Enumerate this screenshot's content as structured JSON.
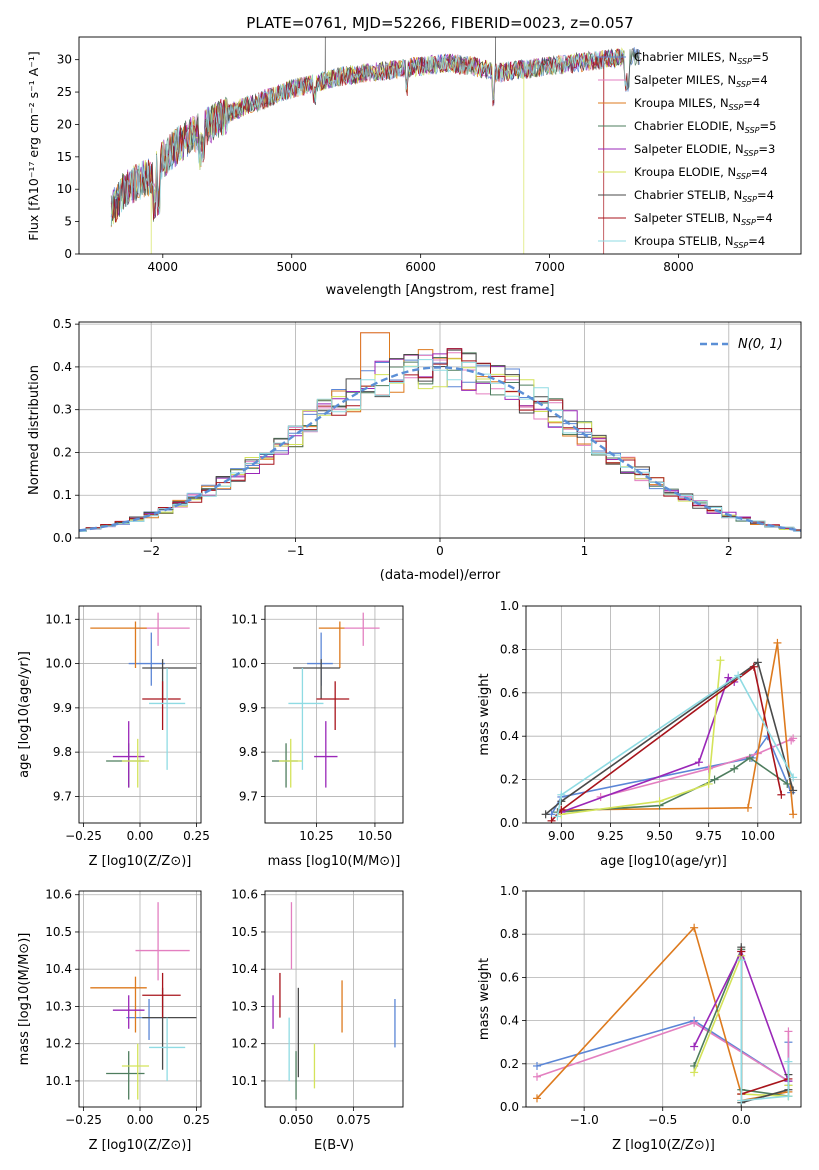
{
  "figure": {
    "title": "PLATE=0761, MJD=52266, FIBERID=0023, z=0.057"
  },
  "colors": {
    "chabrier_miles": "#5b86d6",
    "salpeter_miles": "#e37fc0",
    "kroupa_miles": "#dd7a1e",
    "chabrier_elodie": "#4e7d5e",
    "salpeter_elodie": "#9a27b8",
    "kroupa_elodie": "#d4e35a",
    "chabrier_stelib": "#4a4a4a",
    "salpeter_stelib": "#a8141c",
    "kroupa_stelib": "#8fdbe3",
    "normal": "#5b8fd6",
    "grid": "#b0b0b0"
  },
  "chart_data": [
    {
      "id": "spectrum",
      "type": "line",
      "xlabel": "wavelength [Angstrom, rest frame]",
      "ylabel": "Flux [f_λ10^-17 erg cm^-2 s^-1 A^-1]",
      "xlim": [
        3350,
        8950
      ],
      "ylim": [
        0,
        33.5
      ],
      "xticks": [
        4000,
        5000,
        6000,
        7000,
        8000
      ],
      "yticks": [
        0,
        5,
        10,
        15,
        20,
        25,
        30
      ],
      "grid": false,
      "legend_position": "right",
      "continuum": {
        "x": [
          3600,
          3700,
          3800,
          3900,
          4000,
          4100,
          4200,
          4300,
          4400,
          4600,
          4800,
          5000,
          5200,
          5400,
          5600,
          5800,
          6000,
          6200,
          6400,
          6600,
          6800,
          7000,
          7200,
          7400,
          7600
        ],
        "y": [
          6.5,
          10,
          11,
          12,
          14.5,
          16.5,
          18,
          19,
          20.5,
          22.5,
          24,
          25.5,
          26.5,
          27.5,
          28,
          28.5,
          29,
          29.5,
          29,
          28,
          28.5,
          29,
          29.5,
          30,
          30.5
        ]
      },
      "series": [
        {
          "name": "Chabrier MILES, N_SSP=5",
          "color_key": "chabrier_miles"
        },
        {
          "name": "Salpeter MILES, N_SSP=4",
          "color_key": "salpeter_miles"
        },
        {
          "name": "Kroupa MILES, N_SSP=4",
          "color_key": "kroupa_miles"
        },
        {
          "name": "Chabrier ELODIE, N_SSP=5",
          "color_key": "chabrier_elodie"
        },
        {
          "name": "Salpeter ELODIE, N_SSP=3",
          "color_key": "salpeter_elodie"
        },
        {
          "name": "Kroupa ELODIE, N_SSP=4",
          "color_key": "kroupa_elodie"
        },
        {
          "name": "Chabrier STELIB, N_SSP=4",
          "color_key": "chabrier_stelib"
        },
        {
          "name": "Salpeter STELIB, N_SSP=4",
          "color_key": "salpeter_stelib"
        },
        {
          "name": "Kroupa STELIB, N_SSP=4",
          "color_key": "kroupa_stelib"
        }
      ]
    },
    {
      "id": "residuals",
      "type": "bar",
      "xlabel": "(data-model)/error",
      "ylabel": "Normed distribution",
      "xlim": [
        -2.5,
        2.5
      ],
      "ylim": [
        0,
        0.505
      ],
      "xticks": [
        -2,
        -1,
        0,
        1,
        2
      ],
      "yticks": [
        0.0,
        0.1,
        0.2,
        0.3,
        0.4,
        0.5
      ],
      "grid": true,
      "legend_position": "top-right",
      "legend_label": "N(0, 1)",
      "bin_width": 0.1,
      "series_keys": [
        "chabrier_miles",
        "salpeter_miles",
        "kroupa_miles",
        "chabrier_elodie",
        "salpeter_elodie",
        "kroupa_elodie",
        "chabrier_stelib",
        "salpeter_stelib",
        "kroupa_stelib"
      ]
    },
    {
      "id": "age_vs_Z",
      "type": "scatter",
      "xlabel": "Z [log10(Z/Z⊙)]",
      "ylabel": "age [log10(age/yr)]",
      "xlim": [
        -0.27,
        0.27
      ],
      "ylim": [
        9.64,
        10.13
      ],
      "xticks": [
        -0.25,
        0.0,
        0.25
      ],
      "yticks": [
        9.7,
        9.8,
        9.9,
        10.0,
        10.1
      ],
      "grid": true,
      "points": [
        {
          "key": "chabrier_miles",
          "x": 0.05,
          "y": 10.0,
          "xerr": [
            0.1,
            0.06
          ],
          "yerr": [
            0.05,
            0.07
          ]
        },
        {
          "key": "salpeter_miles",
          "x": 0.08,
          "y": 10.08,
          "xerr": [
            0.1,
            0.14
          ],
          "yerr": [
            0.04,
            0.035
          ]
        },
        {
          "key": "kroupa_miles",
          "x": -0.02,
          "y": 10.08,
          "xerr": [
            0.2,
            0.05
          ],
          "yerr": [
            0.09,
            0.015
          ]
        },
        {
          "key": "chabrier_elodie",
          "x": -0.05,
          "y": 9.78,
          "xerr": [
            0.1,
            0.07
          ],
          "yerr": [
            0.06,
            0.04
          ]
        },
        {
          "key": "salpeter_elodie",
          "x": -0.05,
          "y": 9.79,
          "xerr": [
            0.07,
            0.07
          ],
          "yerr": [
            0.07,
            0.08
          ]
        },
        {
          "key": "kroupa_elodie",
          "x": -0.01,
          "y": 9.78,
          "xerr": [
            0.07,
            0.05
          ],
          "yerr": [
            0.06,
            0.05
          ]
        },
        {
          "key": "chabrier_stelib",
          "x": 0.1,
          "y": 9.99,
          "xerr": [
            0.09,
            0.15
          ],
          "yerr": [
            0.07,
            0.02
          ]
        },
        {
          "key": "salpeter_stelib",
          "x": 0.1,
          "y": 9.92,
          "xerr": [
            0.09,
            0.08
          ],
          "yerr": [
            0.07,
            0.04
          ]
        },
        {
          "key": "kroupa_stelib",
          "x": 0.12,
          "y": 9.91,
          "xerr": [
            0.08,
            0.08
          ],
          "yerr": [
            0.15,
            0.08
          ]
        }
      ]
    },
    {
      "id": "age_vs_mass",
      "type": "scatter",
      "xlabel": "mass [log10(M/M⊙)]",
      "ylabel": "",
      "xlim": [
        10.03,
        10.62
      ],
      "ylim": [
        9.64,
        10.13
      ],
      "xticks": [
        10.25,
        10.5
      ],
      "yticks": [
        9.7,
        9.8,
        9.9,
        10.0,
        10.1
      ],
      "grid": true,
      "points": [
        {
          "key": "chabrier_miles",
          "x": 10.27,
          "y": 10.0,
          "xerr": [
            0.06,
            0.05
          ],
          "yerr": [
            0.05,
            0.07
          ]
        },
        {
          "key": "salpeter_miles",
          "x": 10.45,
          "y": 10.08,
          "xerr": [
            0.08,
            0.07
          ],
          "yerr": [
            0.04,
            0.035
          ]
        },
        {
          "key": "kroupa_miles",
          "x": 10.35,
          "y": 10.08,
          "xerr": [
            0.09,
            0.02
          ],
          "yerr": [
            0.09,
            0.015
          ]
        },
        {
          "key": "chabrier_elodie",
          "x": 10.12,
          "y": 9.78,
          "xerr": [
            0.06,
            0.05
          ],
          "yerr": [
            0.06,
            0.04
          ]
        },
        {
          "key": "salpeter_elodie",
          "x": 10.29,
          "y": 9.79,
          "xerr": [
            0.05,
            0.05
          ],
          "yerr": [
            0.07,
            0.08
          ]
        },
        {
          "key": "kroupa_elodie",
          "x": 10.14,
          "y": 9.78,
          "xerr": [
            0.05,
            0.05
          ],
          "yerr": [
            0.06,
            0.05
          ]
        },
        {
          "key": "chabrier_stelib",
          "x": 10.27,
          "y": 9.99,
          "xerr": [
            0.12,
            0.08
          ],
          "yerr": [
            0.07,
            0.02
          ]
        },
        {
          "key": "salpeter_stelib",
          "x": 10.33,
          "y": 9.92,
          "xerr": [
            0.08,
            0.06
          ],
          "yerr": [
            0.07,
            0.04
          ]
        },
        {
          "key": "kroupa_stelib",
          "x": 10.19,
          "y": 9.91,
          "xerr": [
            0.06,
            0.09
          ],
          "yerr": [
            0.15,
            0.08
          ]
        }
      ]
    },
    {
      "id": "weight_vs_age",
      "type": "line",
      "xlabel": "age [log10(age/yr)]",
      "ylabel": "mass weight",
      "xlim": [
        8.82,
        10.22
      ],
      "ylim": [
        0,
        1.0
      ],
      "xticks": [
        9.0,
        9.25,
        9.5,
        9.75,
        10.0
      ],
      "yticks": [
        0.0,
        0.2,
        0.4,
        0.6,
        0.8,
        1.0
      ],
      "grid": true,
      "series": [
        {
          "key": "chabrier_miles",
          "x": [
            8.95,
            9.0,
            9.97,
            10.05,
            10.17
          ],
          "y": [
            0.04,
            0.12,
            0.3,
            0.4,
            0.14
          ]
        },
        {
          "key": "salpeter_miles",
          "x": [
            9.2,
            9.75,
            10.0,
            10.18,
            10.17
          ],
          "y": [
            0.12,
            0.25,
            0.32,
            0.39,
            0.38
          ]
        },
        {
          "key": "kroupa_miles",
          "x": [
            9.0,
            9.95,
            10.1,
            10.18
          ],
          "y": [
            0.06,
            0.07,
            0.83,
            0.04
          ]
        },
        {
          "key": "chabrier_elodie",
          "x": [
            8.98,
            9.5,
            9.78,
            9.88,
            9.96,
            10.15
          ],
          "y": [
            0.05,
            0.08,
            0.2,
            0.25,
            0.3,
            0.18
          ]
        },
        {
          "key": "salpeter_elodie",
          "x": [
            9.0,
            9.7,
            9.85,
            9.88
          ],
          "y": [
            0.05,
            0.28,
            0.67,
            0.65
          ]
        },
        {
          "key": "kroupa_elodie",
          "x": [
            9.0,
            9.5,
            9.75,
            9.81
          ],
          "y": [
            0.04,
            0.1,
            0.18,
            0.75
          ]
        },
        {
          "key": "chabrier_stelib",
          "x": [
            8.92,
            9.0,
            10.0,
            10.18
          ],
          "y": [
            0.04,
            0.1,
            0.74,
            0.15
          ]
        },
        {
          "key": "salpeter_stelib",
          "x": [
            8.95,
            9.0,
            9.98,
            10.12
          ],
          "y": [
            0.01,
            0.06,
            0.72,
            0.13
          ]
        },
        {
          "key": "kroupa_stelib",
          "x": [
            8.98,
            9.0,
            9.9,
            10.18
          ],
          "y": [
            0.03,
            0.13,
            0.68,
            0.21
          ]
        }
      ]
    },
    {
      "id": "mass_vs_Z",
      "type": "scatter",
      "xlabel": "Z [log10(Z/Z⊙)]",
      "ylabel": "mass [log10(M/M⊙)]",
      "xlim": [
        -0.27,
        0.27
      ],
      "ylim": [
        10.03,
        10.61
      ],
      "xticks": [
        -0.25,
        0.0,
        0.25
      ],
      "yticks": [
        10.1,
        10.2,
        10.3,
        10.4,
        10.5,
        10.6
      ],
      "grid": true,
      "points": [
        {
          "key": "chabrier_miles",
          "x": 0.04,
          "y": 10.27,
          "xerr": [
            0.1,
            0.06
          ],
          "yerr": [
            0.06,
            0.05
          ]
        },
        {
          "key": "salpeter_miles",
          "x": 0.08,
          "y": 10.45,
          "xerr": [
            0.1,
            0.14
          ],
          "yerr": [
            0.08,
            0.13
          ]
        },
        {
          "key": "kroupa_miles",
          "x": -0.02,
          "y": 10.35,
          "xerr": [
            0.2,
            0.05
          ],
          "yerr": [
            0.12,
            0.03
          ]
        },
        {
          "key": "chabrier_elodie",
          "x": -0.05,
          "y": 10.12,
          "xerr": [
            0.1,
            0.07
          ],
          "yerr": [
            0.07,
            0.06
          ]
        },
        {
          "key": "salpeter_elodie",
          "x": -0.05,
          "y": 10.29,
          "xerr": [
            0.07,
            0.07
          ],
          "yerr": [
            0.05,
            0.04
          ]
        },
        {
          "key": "kroupa_elodie",
          "x": -0.01,
          "y": 10.14,
          "xerr": [
            0.07,
            0.05
          ],
          "yerr": [
            0.09,
            0.06
          ]
        },
        {
          "key": "chabrier_stelib",
          "x": 0.1,
          "y": 10.27,
          "xerr": [
            0.09,
            0.15
          ],
          "yerr": [
            0.14,
            0.08
          ]
        },
        {
          "key": "salpeter_stelib",
          "x": 0.1,
          "y": 10.33,
          "xerr": [
            0.09,
            0.08
          ],
          "yerr": [
            0.06,
            0.06
          ]
        },
        {
          "key": "kroupa_stelib",
          "x": 0.12,
          "y": 10.19,
          "xerr": [
            0.08,
            0.08
          ],
          "yerr": [
            0.09,
            0.08
          ]
        }
      ]
    },
    {
      "id": "mass_vs_ebv",
      "type": "scatter",
      "xlabel": "E(B-V)",
      "ylabel": "",
      "xlim": [
        0.0365,
        0.0965
      ],
      "ylim": [
        10.03,
        10.61
      ],
      "xticks": [
        0.05,
        0.075
      ],
      "yticks": [
        10.1,
        10.2,
        10.3,
        10.4,
        10.5,
        10.6
      ],
      "grid": true,
      "points": [
        {
          "key": "chabrier_miles",
          "x": 0.093,
          "y": 10.25,
          "xerr": [
            0,
            0
          ],
          "yerr": [
            0.06,
            0.07
          ]
        },
        {
          "key": "salpeter_miles",
          "x": 0.048,
          "y": 10.48,
          "xerr": [
            0,
            0
          ],
          "yerr": [
            0.08,
            0.1
          ]
        },
        {
          "key": "kroupa_miles",
          "x": 0.07,
          "y": 10.3,
          "xerr": [
            0,
            0
          ],
          "yerr": [
            0.07,
            0.07
          ]
        },
        {
          "key": "chabrier_elodie",
          "x": 0.05,
          "y": 10.12,
          "xerr": [
            0,
            0
          ],
          "yerr": [
            0.07,
            0.06
          ]
        },
        {
          "key": "salpeter_elodie",
          "x": 0.04,
          "y": 10.29,
          "xerr": [
            0,
            0
          ],
          "yerr": [
            0.05,
            0.04
          ]
        },
        {
          "key": "kroupa_elodie",
          "x": 0.058,
          "y": 10.14,
          "xerr": [
            0,
            0
          ],
          "yerr": [
            0.06,
            0.06
          ]
        },
        {
          "key": "chabrier_stelib",
          "x": 0.051,
          "y": 10.25,
          "xerr": [
            0,
            0
          ],
          "yerr": [
            0.14,
            0.1
          ]
        },
        {
          "key": "salpeter_stelib",
          "x": 0.043,
          "y": 10.33,
          "xerr": [
            0,
            0
          ],
          "yerr": [
            0.06,
            0.06
          ]
        },
        {
          "key": "kroupa_stelib",
          "x": 0.047,
          "y": 10.19,
          "xerr": [
            0,
            0
          ],
          "yerr": [
            0.09,
            0.08
          ]
        }
      ]
    },
    {
      "id": "weight_vs_Z",
      "type": "line",
      "xlabel": "Z [log10(Z/Z⊙)]",
      "ylabel": "mass weight",
      "xlim": [
        -1.37,
        0.38
      ],
      "ylim": [
        0,
        1.0
      ],
      "xticks": [
        -1.0,
        -0.5,
        0.0
      ],
      "yticks": [
        0.0,
        0.2,
        0.4,
        0.6,
        0.8,
        1.0
      ],
      "grid": true,
      "series": [
        {
          "key": "chabrier_miles",
          "x": [
            -1.3,
            -0.3,
            0.3,
            0.3
          ],
          "y": [
            0.19,
            0.4,
            0.12,
            0.3
          ]
        },
        {
          "key": "salpeter_miles",
          "x": [
            -1.3,
            -0.3,
            0.3,
            0.3
          ],
          "y": [
            0.14,
            0.39,
            0.12,
            0.35
          ]
        },
        {
          "key": "kroupa_miles",
          "x": [
            -1.3,
            -0.3,
            0.0,
            0.0,
            0.3
          ],
          "y": [
            0.04,
            0.83,
            0.06,
            0.03,
            0.07
          ]
        },
        {
          "key": "chabrier_elodie",
          "x": [
            -0.3,
            0.0,
            0.0,
            0.3,
            0.3
          ],
          "y": [
            0.19,
            0.73,
            0.08,
            0.05,
            0.1
          ]
        },
        {
          "key": "salpeter_elodie",
          "x": [
            -0.3,
            0.0,
            0.3
          ],
          "y": [
            0.28,
            0.72,
            0.12
          ]
        },
        {
          "key": "kroupa_elodie",
          "x": [
            -0.3,
            0.0,
            0.0,
            0.3,
            0.3
          ],
          "y": [
            0.16,
            0.7,
            0.06,
            0.05,
            0.1
          ]
        },
        {
          "key": "chabrier_stelib",
          "x": [
            0.0,
            0.0,
            0.3,
            0.3
          ],
          "y": [
            0.74,
            0.02,
            0.08,
            0.15
          ]
        },
        {
          "key": "salpeter_stelib",
          "x": [
            0.0,
            0.0,
            0.3
          ],
          "y": [
            0.72,
            0.06,
            0.13
          ]
        },
        {
          "key": "kroupa_stelib",
          "x": [
            0.0,
            0.0,
            0.3,
            0.3
          ],
          "y": [
            0.68,
            0.03,
            0.05,
            0.21
          ]
        }
      ]
    }
  ]
}
